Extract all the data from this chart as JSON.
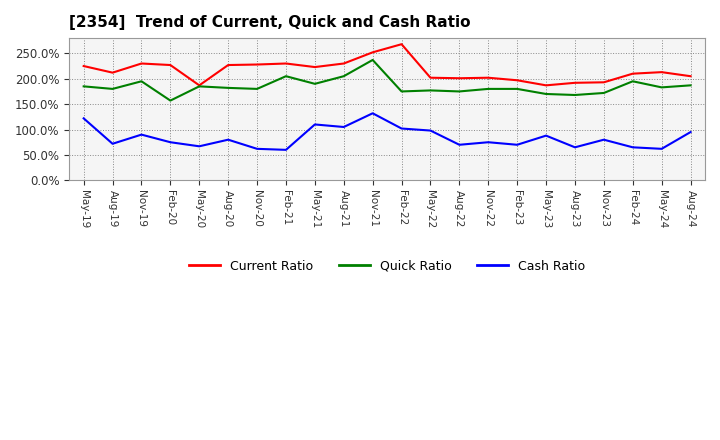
{
  "title": "[2354]  Trend of Current, Quick and Cash Ratio",
  "x_labels": [
    "May-19",
    "Aug-19",
    "Nov-19",
    "Feb-20",
    "May-20",
    "Aug-20",
    "Nov-20",
    "Feb-21",
    "May-21",
    "Aug-21",
    "Nov-21",
    "Feb-22",
    "May-22",
    "Aug-22",
    "Nov-22",
    "Feb-23",
    "May-23",
    "Aug-23",
    "Nov-23",
    "Feb-24",
    "May-24",
    "Aug-24"
  ],
  "current_ratio": [
    2.25,
    2.12,
    2.3,
    2.27,
    1.87,
    2.27,
    2.28,
    2.3,
    2.23,
    2.3,
    2.52,
    2.68,
    2.02,
    2.01,
    2.02,
    1.97,
    1.87,
    1.92,
    1.93,
    2.1,
    2.13,
    2.05
  ],
  "quick_ratio": [
    1.85,
    1.8,
    1.95,
    1.57,
    1.85,
    1.82,
    1.8,
    2.05,
    1.9,
    2.05,
    2.37,
    1.75,
    1.77,
    1.75,
    1.8,
    1.8,
    1.7,
    1.68,
    1.72,
    1.95,
    1.83,
    1.87
  ],
  "cash_ratio": [
    1.22,
    0.72,
    0.9,
    0.75,
    0.67,
    0.8,
    0.62,
    0.6,
    1.1,
    1.05,
    1.32,
    1.02,
    0.98,
    0.7,
    0.75,
    0.7,
    0.88,
    0.65,
    0.8,
    0.65,
    0.62,
    0.95
  ],
  "current_color": "#ff0000",
  "quick_color": "#008000",
  "cash_color": "#0000ff",
  "ylim": [
    0.0,
    2.8
  ],
  "yticks": [
    0.0,
    0.5,
    1.0,
    1.5,
    2.0,
    2.5
  ],
  "bg_color": "#ffffff",
  "plot_bg_color": "#f5f5f5",
  "grid_color": "#aaaaaa",
  "legend_labels": [
    "Current Ratio",
    "Quick Ratio",
    "Cash Ratio"
  ]
}
